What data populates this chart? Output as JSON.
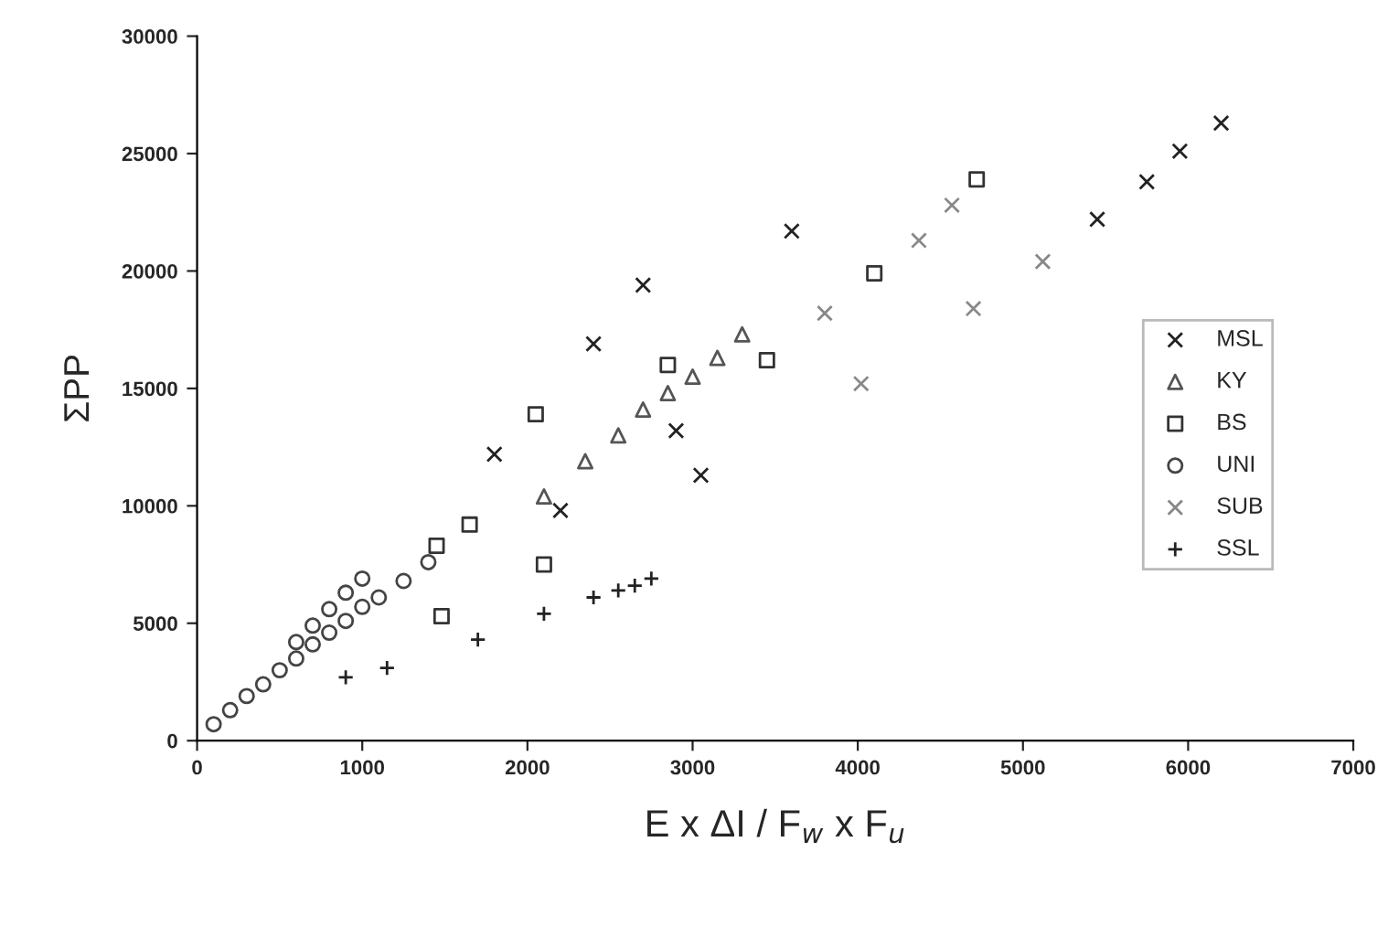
{
  "chart_data": {
    "type": "scatter",
    "xlabel": "E x ΔI / F$_{w}$ x F$_{u}$",
    "ylabel": "ΣPP",
    "xlim": [
      0,
      7000
    ],
    "xticks": [
      0,
      1000,
      2000,
      3000,
      4000,
      5000,
      6000,
      7000
    ],
    "ylim": [
      0,
      30000
    ],
    "yticks": [
      0,
      5000,
      10000,
      15000,
      20000,
      25000,
      30000
    ],
    "grid": false,
    "legend": "right",
    "series": [
      {
        "name": "MSL",
        "color": "#222222",
        "marker": "cross",
        "x": [
          1800,
          2400,
          2700,
          3600,
          2900,
          3050,
          2200,
          5450,
          5750,
          5950,
          6200
        ],
        "values": [
          12200,
          16900,
          19400,
          21700,
          13200,
          11300,
          9800,
          22200,
          23800,
          25100,
          26300
        ]
      },
      {
        "name": "KY",
        "color": "#555555",
        "marker": "triangle",
        "x": [
          2100,
          2350,
          2550,
          2700,
          2850,
          3000,
          3150,
          3300
        ],
        "values": [
          10400,
          11900,
          13000,
          14100,
          14800,
          15500,
          16300,
          17300
        ]
      },
      {
        "name": "BS",
        "color": "#333333",
        "marker": "square",
        "x": [
          1480,
          2100,
          2050,
          3450,
          4100,
          4720,
          2850,
          1450,
          1650
        ],
        "values": [
          5300,
          7500,
          13900,
          16200,
          19900,
          23900,
          16000,
          8300,
          9200
        ]
      },
      {
        "name": "UNI",
        "color": "#444444",
        "marker": "circle",
        "x": [
          100,
          200,
          300,
          400,
          500,
          600,
          700,
          800,
          900,
          1000,
          1100,
          1250,
          1400,
          600,
          700,
          800,
          900,
          1000
        ],
        "values": [
          700,
          1300,
          1900,
          2400,
          3000,
          3500,
          4100,
          4600,
          5100,
          5700,
          6100,
          6800,
          7600,
          4200,
          4900,
          5600,
          6300,
          6900
        ]
      },
      {
        "name": "SUB",
        "color": "#888888",
        "marker": "cross",
        "x": [
          3800,
          4020,
          4370,
          4700,
          5120,
          4570
        ],
        "values": [
          18200,
          15200,
          21300,
          18400,
          20400,
          22800
        ]
      },
      {
        "name": "SSL",
        "color": "#222222",
        "marker": "plus",
        "x": [
          900,
          1150,
          1700,
          2100,
          2400,
          2550,
          2650,
          2750
        ],
        "values": [
          2700,
          3100,
          4300,
          5400,
          6100,
          6400,
          6600,
          6900
        ]
      }
    ]
  }
}
